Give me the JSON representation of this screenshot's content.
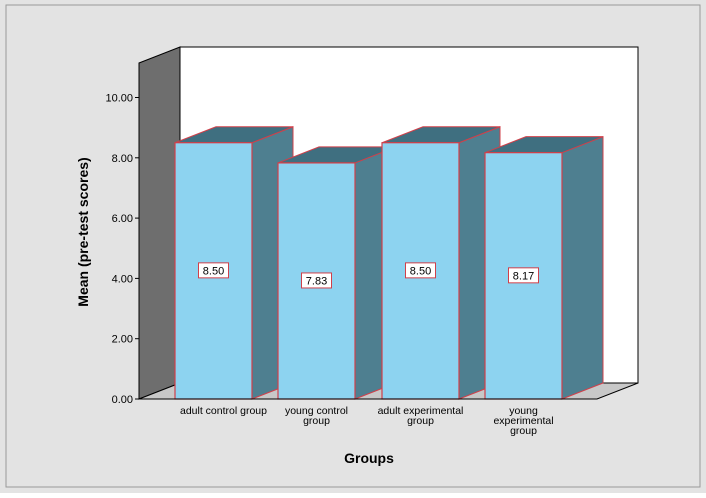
{
  "chart_data": {
    "type": "bar",
    "categories": [
      [
        "adult control group"
      ],
      [
        "young control",
        "group"
      ],
      [
        "adult experimental",
        "group"
      ],
      [
        "young",
        "experimental",
        "group"
      ]
    ],
    "values": [
      8.5,
      7.83,
      8.5,
      8.17
    ],
    "data_labels": [
      "8.50",
      "7.83",
      "8.50",
      "8.17"
    ],
    "title": "",
    "xlabel": "Groups",
    "ylabel": "Mean (pre-test scores)",
    "yticks": [
      "0.00",
      "2.00",
      "4.00",
      "6.00",
      "8.00",
      "10.00"
    ],
    "ylim": [
      0,
      10
    ],
    "grid": false,
    "legend": "none",
    "three_d": true
  },
  "colors": {
    "background": "#e3e3e3",
    "plot_back": "#ffffff",
    "plot_left_wall": "#6e6e6e",
    "plot_floor": "#c8c8c8",
    "bar_front": "#8dd3f0",
    "bar_side": "#4e7f90",
    "bar_top": "#3f6f80",
    "bar_stroke": "#d0404a",
    "label_stroke": "#d0404a"
  }
}
